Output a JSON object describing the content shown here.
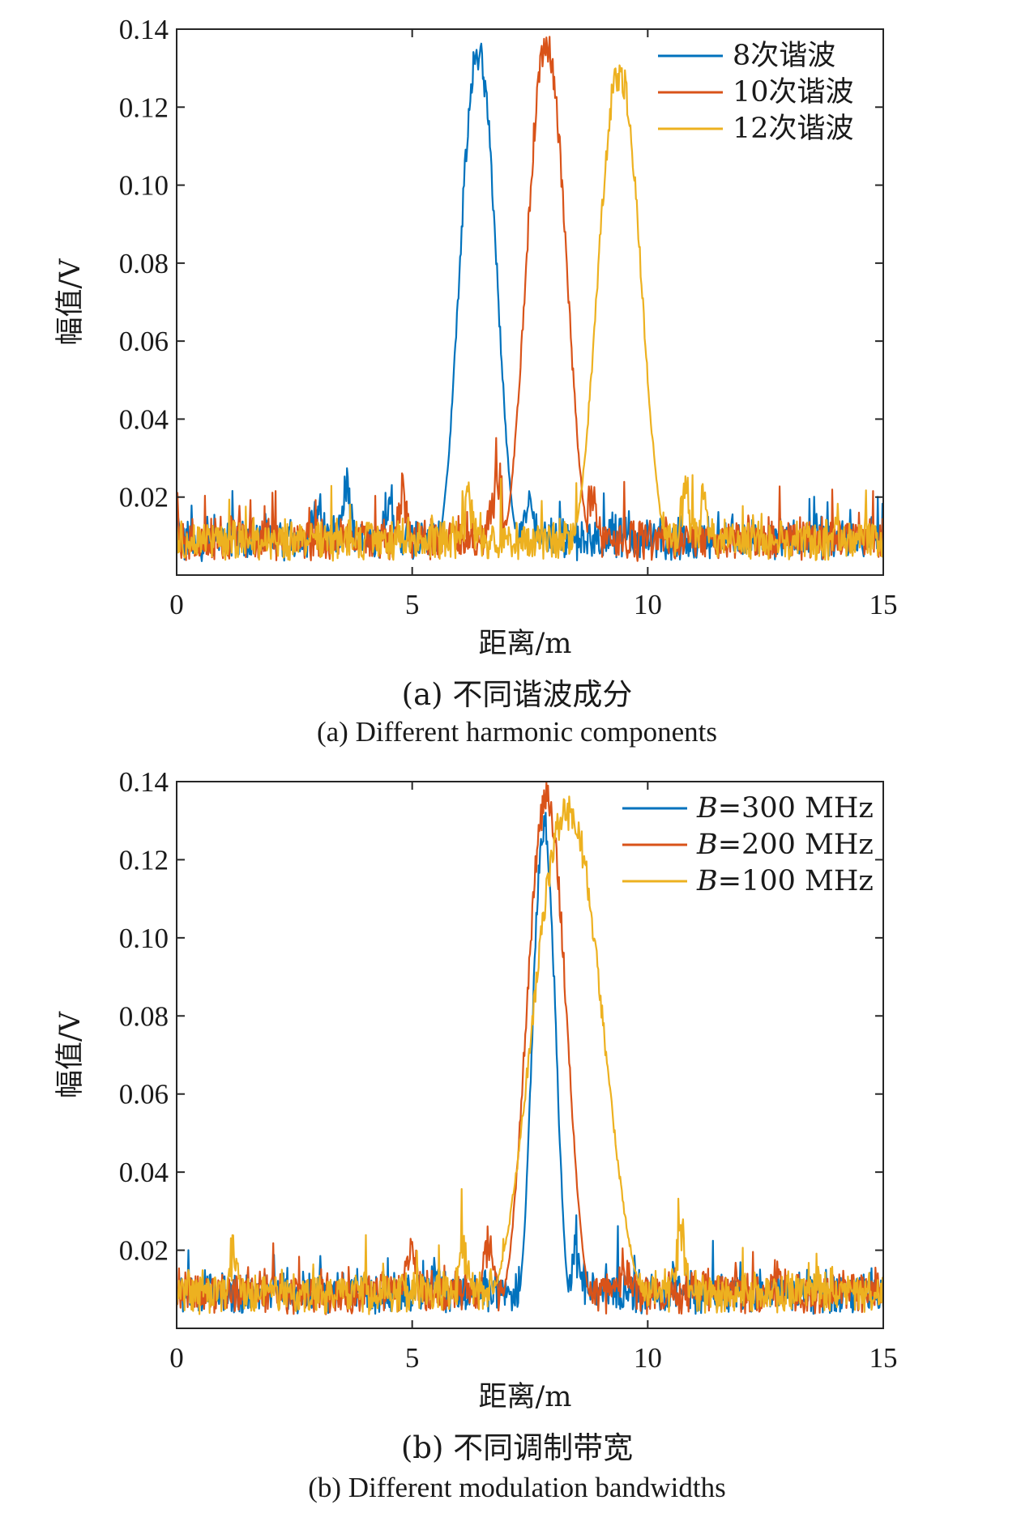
{
  "chart_data": [
    {
      "type": "line",
      "caption_zh": "(a) 不同谐波成分",
      "caption_en": "(a) Different harmonic components",
      "xlabel": "距离/m",
      "ylabel": "幅值/V",
      "xlim": [
        0,
        15
      ],
      "ylim": [
        0,
        0.14
      ],
      "xticks": [
        0,
        5,
        10,
        15
      ],
      "yticks": [
        0.02,
        0.04,
        0.06,
        0.08,
        0.1,
        0.12,
        0.14
      ],
      "ytick_labels": [
        "0.02",
        "0.04",
        "0.06",
        "0.08",
        "0.10",
        "0.12",
        "0.14"
      ],
      "grid": false,
      "legend_position": "top-right",
      "noise_floor": 0.01,
      "series": [
        {
          "name": "8次谐波",
          "color": "#0072BD",
          "peak_x": 6.4,
          "peak_y": 0.138,
          "half_width": 0.55,
          "bumps": [
            [
              3.0,
              0.02
            ],
            [
              3.6,
              0.024
            ],
            [
              4.5,
              0.022
            ],
            [
              7.5,
              0.02
            ]
          ]
        },
        {
          "name": "10次谐波",
          "color": "#D95319",
          "peak_x": 7.85,
          "peak_y": 0.14,
          "half_width": 0.6,
          "bumps": [
            [
              4.8,
              0.022
            ],
            [
              6.8,
              0.03
            ],
            [
              8.8,
              0.022
            ]
          ]
        },
        {
          "name": "12次谐波",
          "color": "#EDB120",
          "peak_x": 9.4,
          "peak_y": 0.133,
          "half_width": 0.65,
          "bumps": [
            [
              6.2,
              0.022
            ],
            [
              10.8,
              0.024
            ],
            [
              11.2,
              0.02
            ]
          ]
        }
      ]
    },
    {
      "type": "line",
      "caption_zh": "(b) 不同调制带宽",
      "caption_en": "(b) Different modulation bandwidths",
      "xlabel": "距离/m",
      "ylabel": "幅值/V",
      "xlim": [
        0,
        15
      ],
      "ylim": [
        0,
        0.14
      ],
      "xticks": [
        0,
        5,
        10,
        15
      ],
      "yticks": [
        0.02,
        0.04,
        0.06,
        0.08,
        0.1,
        0.12,
        0.14
      ],
      "ytick_labels": [
        "0.02",
        "0.04",
        "0.06",
        "0.08",
        "0.10",
        "0.12",
        "0.14"
      ],
      "grid": false,
      "legend_position": "top-right",
      "noise_floor": 0.01,
      "series": [
        {
          "name": "B=300 MHz",
          "color": "#0072BD",
          "peak_x": 7.8,
          "peak_y": 0.133,
          "half_width": 0.35,
          "bumps": [
            [
              8.5,
              0.022
            ],
            [
              5.5,
              0.015
            ]
          ]
        },
        {
          "name": "B=200 MHz",
          "color": "#D95319",
          "peak_x": 7.85,
          "peak_y": 0.14,
          "half_width": 0.6,
          "bumps": [
            [
              5.0,
              0.022
            ],
            [
              6.6,
              0.024
            ],
            [
              9.5,
              0.018
            ]
          ]
        },
        {
          "name": "B=100 MHz",
          "color": "#EDB120",
          "peak_x": 8.3,
          "peak_y": 0.137,
          "half_width": 1.05,
          "bumps": [
            [
              6.1,
              0.024
            ],
            [
              10.7,
              0.028
            ],
            [
              1.2,
              0.02
            ]
          ]
        }
      ]
    }
  ]
}
